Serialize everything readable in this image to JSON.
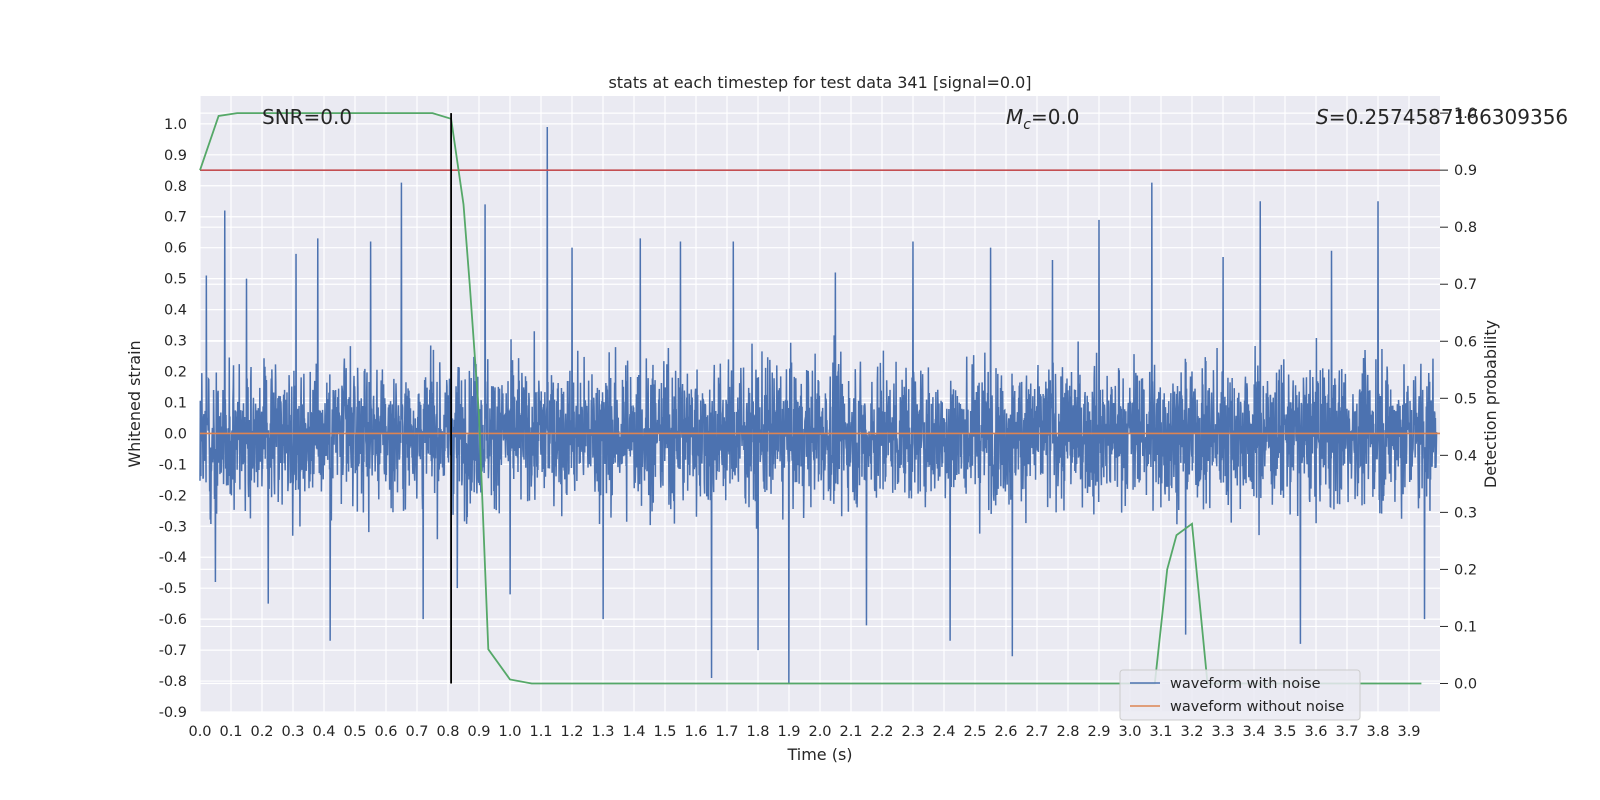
{
  "chart_data": {
    "type": "line",
    "title": "stats at each timestep for test data 341 [signal=0.0]",
    "xlabel": "Time (s)",
    "ylabel": "Whitened strain",
    "y2label": "Detection probability",
    "xlim": [
      0.0,
      4.0
    ],
    "ylim": [
      -0.9,
      1.09
    ],
    "y2lim": [
      -0.05,
      1.03
    ],
    "x_ticks": [
      "0.0",
      "0.1",
      "0.2",
      "0.3",
      "0.4",
      "0.5",
      "0.6",
      "0.7",
      "0.8",
      "0.9",
      "1.0",
      "1.1",
      "1.2",
      "1.3",
      "1.4",
      "1.5",
      "1.6",
      "1.7",
      "1.8",
      "1.9",
      "2.0",
      "2.1",
      "2.2",
      "2.3",
      "2.4",
      "2.5",
      "2.6",
      "2.7",
      "2.8",
      "2.9",
      "3.0",
      "3.1",
      "3.2",
      "3.3",
      "3.4",
      "3.5",
      "3.6",
      "3.7",
      "3.8",
      "3.9"
    ],
    "y_ticks": [
      "1.0",
      "0.9",
      "0.8",
      "0.7",
      "0.6",
      "0.5",
      "0.4",
      "0.3",
      "0.2",
      "0.1",
      "0.0",
      "-0.1",
      "-0.2",
      "-0.3",
      "-0.4",
      "-0.5",
      "-0.6",
      "-0.7",
      "-0.8",
      "-0.9"
    ],
    "y2_ticks": [
      "1.0",
      "0.9",
      "0.8",
      "0.7",
      "0.6",
      "0.5",
      "0.4",
      "0.3",
      "0.2",
      "0.1",
      "0.0"
    ],
    "annotations": {
      "snr": "SNR=0.0",
      "mc_symbol": "M",
      "mc_sub": "c",
      "mc_value": "=0.0",
      "s_symbol": "S",
      "s_value": "=0.2574587166309356"
    },
    "legend": [
      "waveform with noise",
      "waveform without noise"
    ],
    "legend_position": "lower right",
    "threshold": 0.9,
    "marker_time": 0.81,
    "waveform_peaks": {
      "times": [
        0.02,
        0.05,
        0.08,
        0.15,
        0.22,
        0.31,
        0.38,
        0.42,
        0.55,
        0.65,
        0.72,
        0.81,
        0.83,
        0.92,
        1.0,
        1.12,
        1.2,
        1.3,
        1.42,
        1.55,
        1.65,
        1.72,
        1.8,
        1.9,
        2.05,
        2.15,
        2.3,
        2.42,
        2.55,
        2.62,
        2.75,
        2.9,
        3.07,
        3.18,
        3.3,
        3.42,
        3.55,
        3.65,
        3.8,
        3.95
      ],
      "values": [
        0.51,
        -0.48,
        0.72,
        0.5,
        -0.55,
        0.58,
        0.63,
        -0.67,
        0.62,
        0.81,
        -0.6,
        0.52,
        -0.5,
        0.74,
        -0.52,
        0.99,
        0.6,
        -0.6,
        0.63,
        0.62,
        -0.79,
        0.62,
        -0.7,
        -0.81,
        0.52,
        -0.62,
        0.62,
        -0.67,
        0.6,
        -0.72,
        0.56,
        0.69,
        0.81,
        -0.65,
        0.57,
        0.75,
        -0.68,
        0.59,
        0.75,
        -0.6
      ]
    },
    "detection_probability": {
      "times": [
        0.0,
        0.06,
        0.12,
        0.2,
        0.4,
        0.6,
        0.75,
        0.81,
        0.85,
        0.87,
        0.9,
        0.93,
        1.0,
        1.07,
        1.5,
        2.0,
        2.5,
        3.0,
        3.08,
        3.12,
        3.15,
        3.2,
        3.25,
        3.5,
        3.94
      ],
      "values": [
        0.9,
        0.995,
        1.0,
        1.0,
        1.0,
        1.0,
        1.0,
        0.99,
        0.84,
        0.7,
        0.47,
        0.06,
        0.007,
        0.0,
        0.0,
        0.0,
        0.0,
        0.0,
        0.0,
        0.2,
        0.26,
        0.28,
        0.0,
        0.0,
        0.0
      ]
    },
    "colors": {
      "noise": "#4c72b0",
      "clean": "#dd8452",
      "probability": "#55a868",
      "threshold": "#c44e52",
      "marker": "#000000",
      "plot_bg": "#eaeaf2",
      "grid": "#ffffff"
    }
  }
}
